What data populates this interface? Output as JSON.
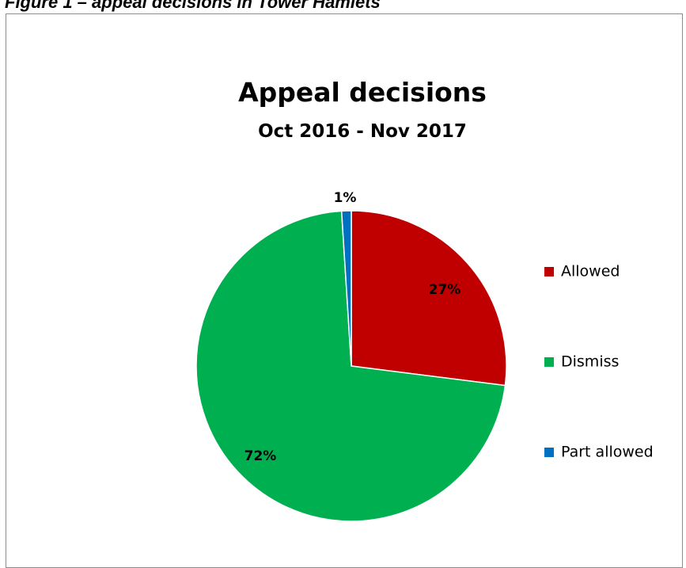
{
  "figure_caption": "Figure 1 – appeal decisions in Tower Hamlets",
  "chart_data": {
    "type": "pie",
    "title": "Appeal decisions",
    "subtitle": "Oct 2016 - Nov 2017",
    "legend_position": "right",
    "slices": [
      {
        "label": "Allowed",
        "value": 27,
        "data_label": "27%",
        "color": "#c00000"
      },
      {
        "label": "Dismiss",
        "value": 72,
        "data_label": "72%",
        "color": "#00b050"
      },
      {
        "label": "Part allowed",
        "value": 1,
        "data_label": "1%",
        "color": "#0070c0"
      }
    ]
  }
}
